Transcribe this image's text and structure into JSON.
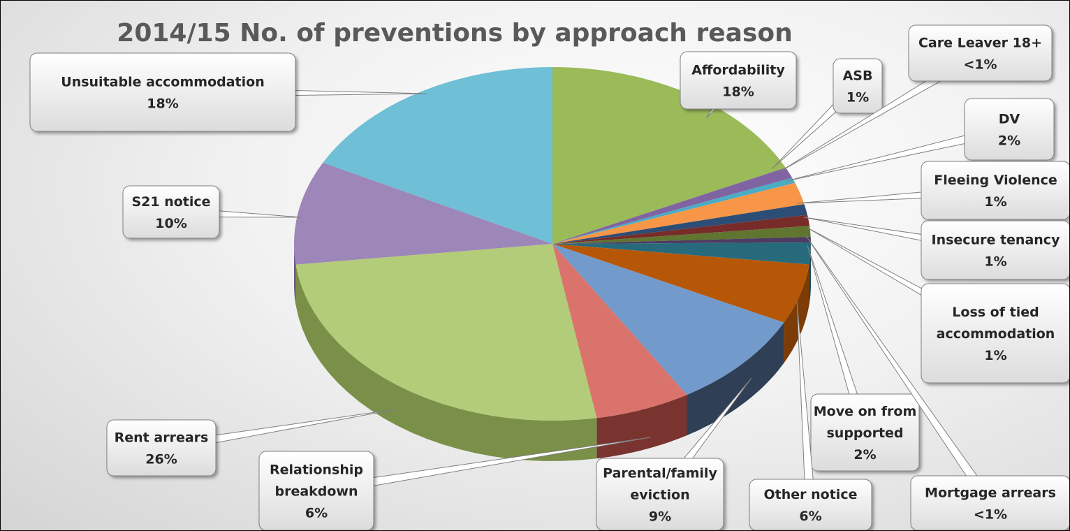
{
  "chart_data": {
    "type": "pie",
    "title": "2014/15 No. of preventions by approach reason",
    "slices": [
      {
        "label": "Affordability",
        "pct_text": "18%",
        "value": 18,
        "color": "#9bbb59",
        "side": "#6f8a3c"
      },
      {
        "label": "ASB",
        "pct_text": "1%",
        "value": 1,
        "color": "#8064a2",
        "side": "#5c4675"
      },
      {
        "label": "Care Leaver 18+",
        "pct_text": "<1%",
        "value": 0.5,
        "color": "#4bacc6",
        "side": "#327a8e"
      },
      {
        "label": "DV",
        "pct_text": "2%",
        "value": 2,
        "color": "#f79646",
        "side": "#b96a2a"
      },
      {
        "label": "Fleeing Violence",
        "pct_text": "1%",
        "value": 1,
        "color": "#2c4d75",
        "side": "#1c3350"
      },
      {
        "label": "Insecure tenancy",
        "pct_text": "1%",
        "value": 1,
        "color": "#772c2a",
        "side": "#521d1c"
      },
      {
        "label": "Loss of tied accommodation",
        "pct_text": "1%",
        "value": 1,
        "color": "#5f7530",
        "side": "#40501f"
      },
      {
        "label": "Mortgage arrears",
        "pct_text": "<1%",
        "value": 0.5,
        "color": "#4d3b62",
        "side": "#342841"
      },
      {
        "label": "Move on from supported",
        "pct_text": "2%",
        "value": 2,
        "color": "#276a7c",
        "side": "#1a4a57"
      },
      {
        "label": "Other notice",
        "pct_text": "6%",
        "value": 5.5,
        "color": "#b65708",
        "side": "#7d3c06"
      },
      {
        "label": "Parental/family eviction",
        "pct_text": "9%",
        "value": 9,
        "color": "#729aca",
        "side": "#2f3f55"
      },
      {
        "label": "Relationship breakdown",
        "pct_text": "6%",
        "value": 6,
        "color": "#d9736c",
        "side": "#7a3430"
      },
      {
        "label": "Rent arrears",
        "pct_text": "26%",
        "value": 26,
        "color": "#b3cc7a",
        "side": "#7a9048"
      },
      {
        "label": "S21 notice",
        "pct_text": "10%",
        "value": 9.5,
        "color": "#9d86b8",
        "side": "#6d5a86"
      },
      {
        "label": "Unsuitable accommodation",
        "pct_text": "18%",
        "value": 17.5,
        "color": "#6fbfd6",
        "side": "#4a8ea1"
      }
    ],
    "legend": "none",
    "data_labels": "callouts"
  },
  "callouts": [
    {
      "key": "affordability",
      "lines": [
        "Affordability",
        "18%"
      ]
    },
    {
      "key": "asb",
      "lines": [
        "ASB",
        "1%"
      ]
    },
    {
      "key": "care-leaver",
      "lines": [
        "Care Leaver 18+",
        "<1%"
      ]
    },
    {
      "key": "dv",
      "lines": [
        "DV",
        "2%"
      ]
    },
    {
      "key": "fleeing-violence",
      "lines": [
        "Fleeing Violence",
        "1%"
      ]
    },
    {
      "key": "insecure-tenancy",
      "lines": [
        "Insecure tenancy",
        "1%"
      ]
    },
    {
      "key": "loss-of-tied",
      "lines": [
        "Loss of tied",
        "accommodation",
        "1%"
      ]
    },
    {
      "key": "move-on",
      "lines": [
        "Move on from",
        "supported",
        "2%"
      ]
    },
    {
      "key": "mortgage-arrears",
      "lines": [
        "Mortgage arrears",
        "<1%"
      ]
    },
    {
      "key": "other-notice",
      "lines": [
        "Other notice",
        "6%"
      ]
    },
    {
      "key": "parental-eviction",
      "lines": [
        "Parental/family",
        "eviction",
        "9%"
      ]
    },
    {
      "key": "relationship-breakdown",
      "lines": [
        "Relationship",
        "breakdown",
        "6%"
      ]
    },
    {
      "key": "rent-arrears",
      "lines": [
        "Rent arrears",
        "26%"
      ]
    },
    {
      "key": "s21-notice",
      "lines": [
        "S21 notice",
        "10%"
      ]
    },
    {
      "key": "unsuitable-accommodation",
      "lines": [
        "Unsuitable accommodation",
        "18%"
      ]
    }
  ]
}
